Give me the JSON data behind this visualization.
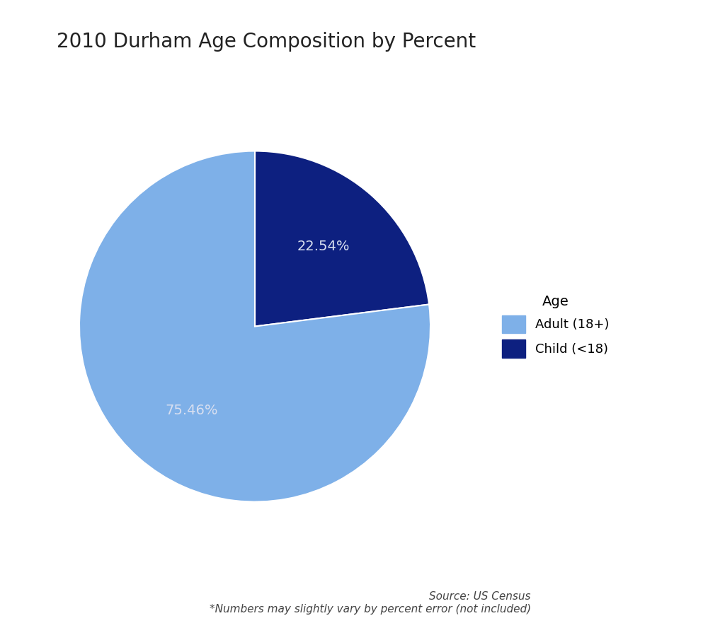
{
  "title": "2010 Durham Age Composition by Percent",
  "slices": [
    22.54,
    75.46
  ],
  "labels": [
    "Child (<18)",
    "Adult (18+)"
  ],
  "colors": [
    "#0D2080",
    "#7EB0E8"
  ],
  "legend_labels": [
    "Adult (18+)",
    "Child (<18)"
  ],
  "legend_colors": [
    "#7EB0E8",
    "#0D2080"
  ],
  "pct_labels": [
    "22.54%",
    "75.46%"
  ],
  "legend_title": "Age",
  "source_text": "Source: US Census\n*Numbers may slightly vary by percent error (not included)",
  "title_fontsize": 20,
  "label_fontsize": 14,
  "legend_fontsize": 13,
  "source_fontsize": 11,
  "background_color": "#ffffff",
  "start_angle": 90,
  "text_color": "#d8dff0"
}
